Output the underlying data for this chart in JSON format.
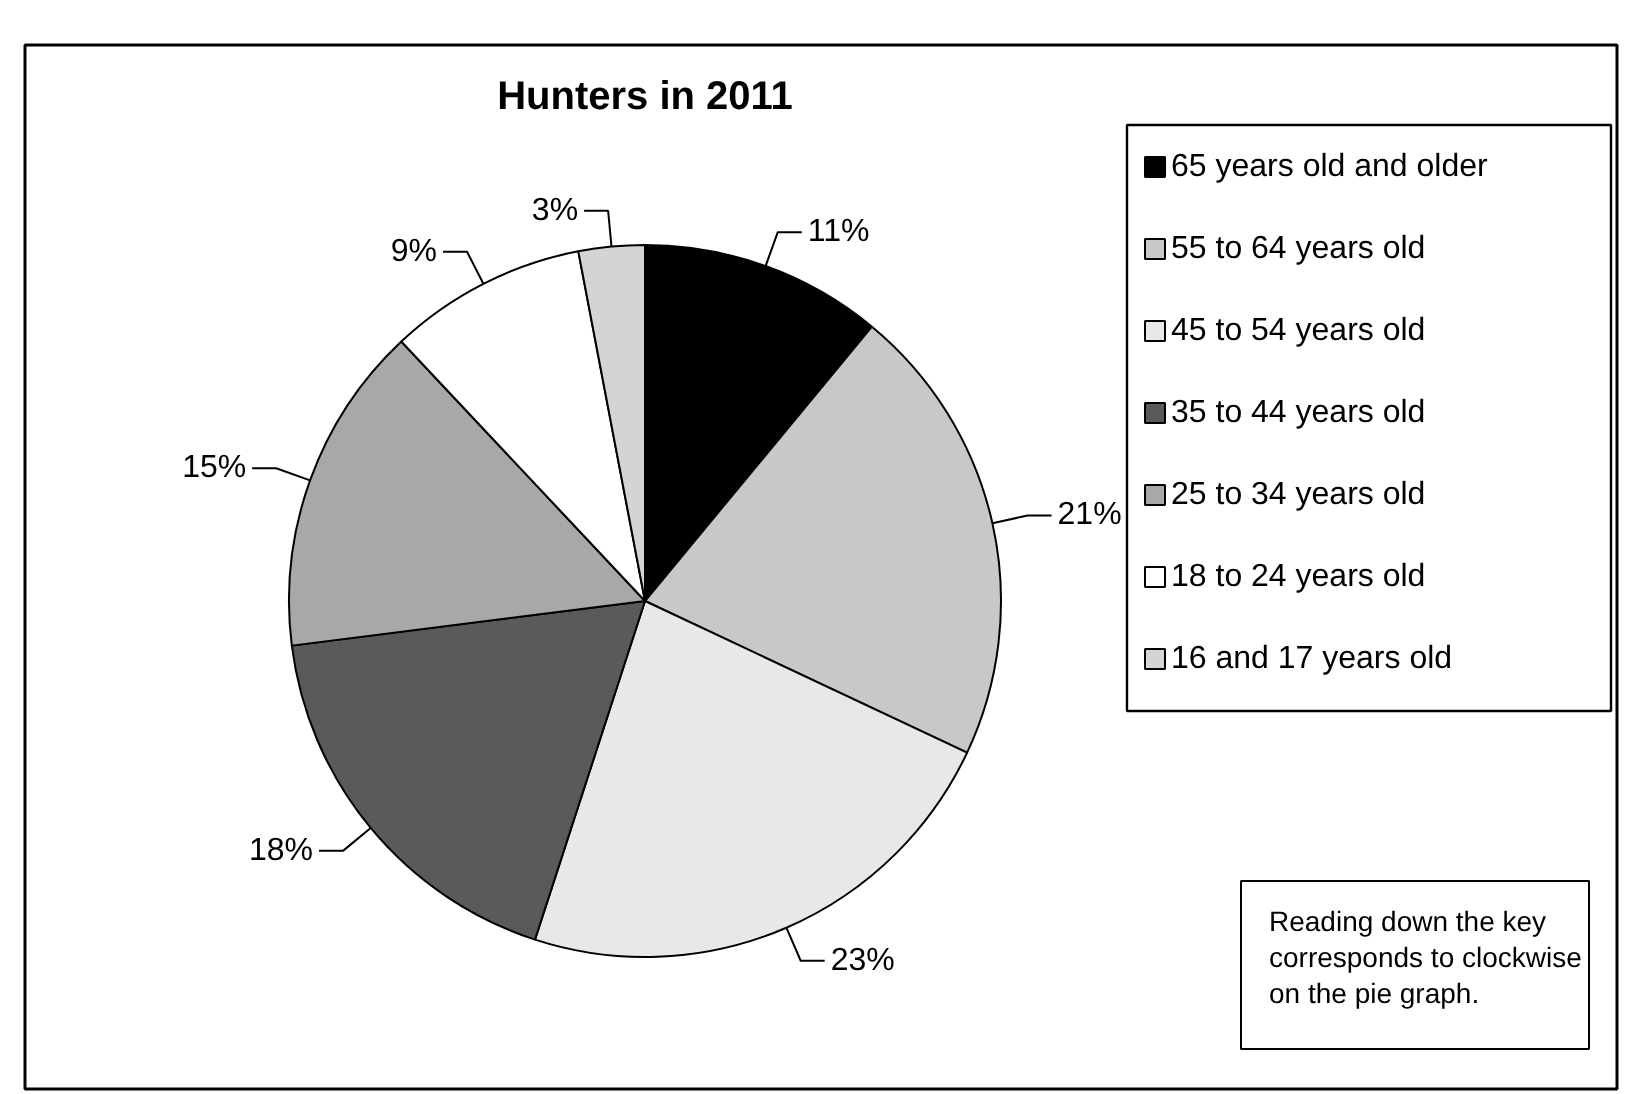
{
  "chart_data": {
    "type": "pie",
    "title": "Hunters in 2011",
    "categories": [
      "65 years old and older",
      "55 to 64 years old",
      "45 to 54 years old",
      "35 to 44 years old",
      "25 to 34 years old",
      "18 to 24 years old",
      "16 and 17 years old"
    ],
    "values": [
      11,
      21,
      23,
      18,
      15,
      9,
      3
    ],
    "colors": [
      "#000000",
      "#c8c8c8",
      "#e8e8e8",
      "#5a5a5a",
      "#a8a8a8",
      "#ffffff",
      "#d4d4d4"
    ],
    "value_labels": [
      "11%",
      "21%",
      "23%",
      "18%",
      "15%",
      "9%",
      "3%"
    ],
    "legend": "right",
    "annotations": [
      "Reading down the key corresponds to clockwise on the pie graph."
    ]
  }
}
